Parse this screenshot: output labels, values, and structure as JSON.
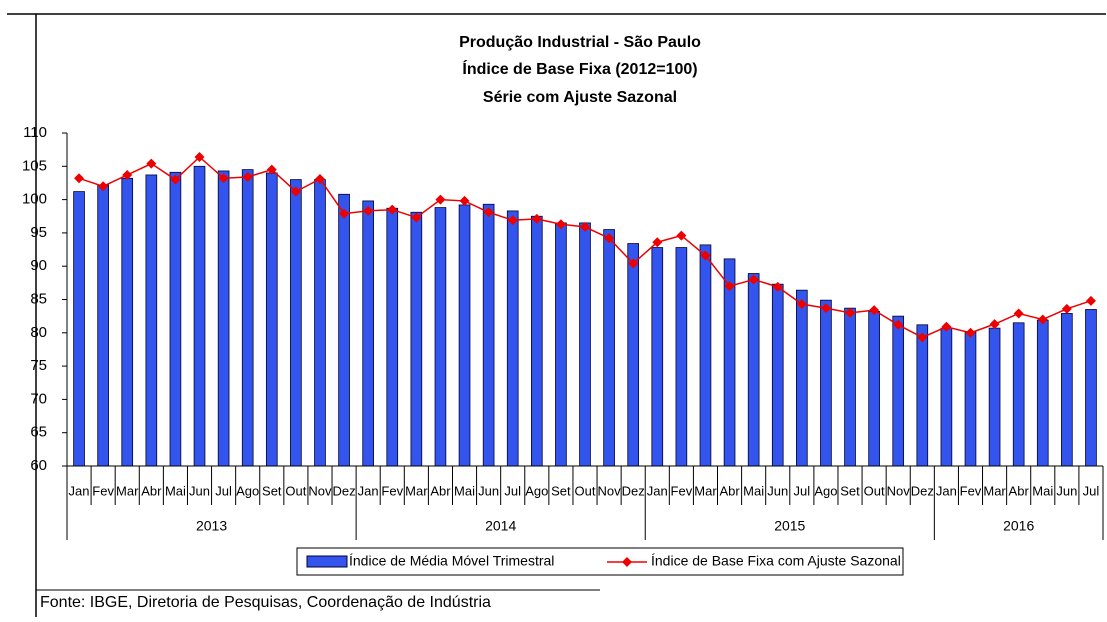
{
  "chart_data": {
    "type": "bar-line",
    "title": [
      "Produção Industrial - São Paulo",
      "Índice de Base Fixa (2012=100)",
      "Série com Ajuste Sazonal"
    ],
    "categories": [
      "Jan",
      "Fev",
      "Mar",
      "Abr",
      "Mai",
      "Jun",
      "Jul",
      "Ago",
      "Set",
      "Out",
      "Nov",
      "Dez",
      "Jan",
      "Fev",
      "Mar",
      "Abr",
      "Mai",
      "Jun",
      "Jul",
      "Ago",
      "Set",
      "Out",
      "Nov",
      "Dez",
      "Jan",
      "Fev",
      "Mar",
      "Abr",
      "Mai",
      "Jun",
      "Jul",
      "Ago",
      "Set",
      "Out",
      "Nov",
      "Dez",
      "Jan",
      "Fev",
      "Mar",
      "Abr",
      "Mai",
      "Jun",
      "Jul"
    ],
    "years": [
      "2013",
      "2014",
      "2015",
      "2016"
    ],
    "series": [
      {
        "name": "Índice de Média Móvel Trimestral",
        "type": "bar",
        "color": "#3355ee",
        "values": [
          101.2,
          102.2,
          103.2,
          103.7,
          104.1,
          105.0,
          104.3,
          104.5,
          104.0,
          103.0,
          103.0,
          100.8,
          99.8,
          98.7,
          98.1,
          98.8,
          99.2,
          99.3,
          98.3,
          97.5,
          96.5,
          96.5,
          95.5,
          93.4,
          92.8,
          92.8,
          93.2,
          91.1,
          88.9,
          87.3,
          86.4,
          84.9,
          83.7,
          83.2,
          82.5,
          81.2,
          80.7,
          80.2,
          80.7,
          81.5,
          81.9,
          82.9,
          83.5
        ]
      },
      {
        "name": "Índice de Base Fixa com Ajuste Sazonal",
        "type": "line",
        "color": "#ee0000",
        "values": [
          103.2,
          102.0,
          103.7,
          105.4,
          103.0,
          106.4,
          103.2,
          103.4,
          104.5,
          101.2,
          103.1,
          97.9,
          98.3,
          98.5,
          97.3,
          100.0,
          99.8,
          98.1,
          96.9,
          97.1,
          96.3,
          95.9,
          94.2,
          90.4,
          93.6,
          94.6,
          91.6,
          87.0,
          88.0,
          86.9,
          84.3,
          83.7,
          83.0,
          83.4,
          81.2,
          79.3,
          80.9,
          80.0,
          81.3,
          82.9,
          82.0,
          83.6,
          84.8
        ]
      }
    ],
    "ylim": [
      60,
      110
    ],
    "yticks": [
      60,
      65,
      70,
      75,
      80,
      85,
      90,
      95,
      100,
      105,
      110
    ],
    "legend": "bottom",
    "source": "Fonte: IBGE, Diretoria de Pesquisas, Coordenação de Indústria"
  }
}
